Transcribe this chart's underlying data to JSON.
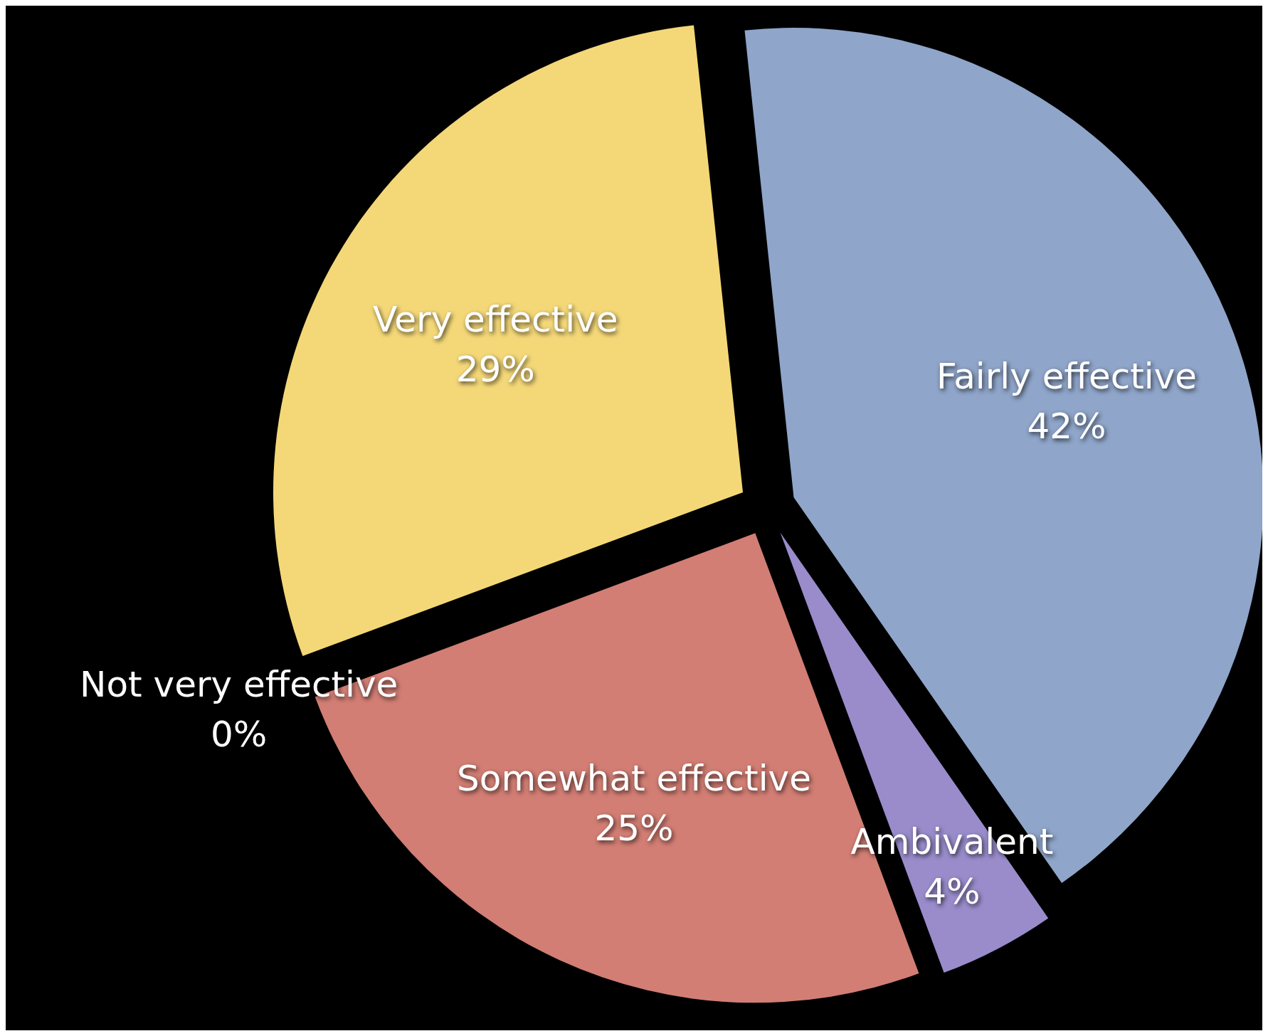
{
  "chart_data": {
    "type": "pie",
    "categories": [
      "Fairly effective",
      "Ambivalent",
      "Somewhat effective",
      "Not very effective",
      "Very effective"
    ],
    "values": [
      42,
      4,
      25,
      0,
      29
    ],
    "colors": [
      "#8fa5c9",
      "#9a8ccb",
      "#d27e74",
      "#8fbe7b",
      "#f4d878"
    ],
    "value_labels": [
      "42%",
      "4%",
      "25%",
      "0%",
      "29%"
    ],
    "legend": false
  }
}
